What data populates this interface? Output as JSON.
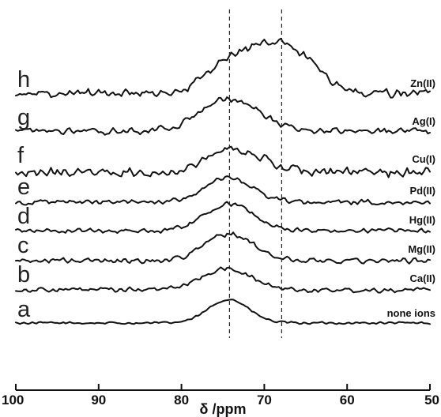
{
  "chart_data": {
    "type": "line",
    "title": "",
    "xlabel": "δ /ppm",
    "ylabel": "",
    "xlim": [
      100,
      50
    ],
    "x_reversed": true,
    "x_ticks": [
      "100",
      "90",
      "80",
      "70",
      "60",
      "50"
    ],
    "grid": false,
    "reference_lines_ppm": [
      74.2,
      67.9
    ],
    "series": [
      {
        "letter": "a",
        "ion": "none ions",
        "peaks": [
          {
            "center": 74.3,
            "height": 1.0,
            "width": 2.4
          }
        ],
        "noise": 0.06
      },
      {
        "letter": "b",
        "ion": "Ca(II)",
        "peaks": [
          {
            "center": 74.6,
            "height": 0.95,
            "width": 3.0
          }
        ],
        "noise": 0.13
      },
      {
        "letter": "c",
        "ion": "Mg(II)",
        "peaks": [
          {
            "center": 74.3,
            "height": 1.0,
            "width": 2.9
          }
        ],
        "noise": 0.12
      },
      {
        "letter": "d",
        "ion": "Hg(II)",
        "peaks": [
          {
            "center": 74.2,
            "height": 1.0,
            "width": 2.9
          }
        ],
        "noise": 0.11
      },
      {
        "letter": "e",
        "ion": "Pd(II)",
        "peaks": [
          {
            "center": 74.3,
            "height": 0.85,
            "width": 2.9
          }
        ],
        "noise": 0.1
      },
      {
        "letter": "f",
        "ion": "Cu(I)",
        "peaks": [
          {
            "center": 73.7,
            "height": 0.95,
            "width": 3.3
          }
        ],
        "noise": 0.22
      },
      {
        "letter": "g",
        "ion": "Ag(I)",
        "peaks": [
          {
            "center": 74.2,
            "height": 1.0,
            "width": 3.5
          }
        ],
        "noise": 0.13
      },
      {
        "letter": "h",
        "ion": "Zn(II)",
        "peaks": [
          {
            "center": 74.3,
            "height": 0.65,
            "width": 2.8
          },
          {
            "center": 67.9,
            "height": 1.2,
            "width": 3.6
          }
        ],
        "noise": 0.12
      }
    ]
  }
}
